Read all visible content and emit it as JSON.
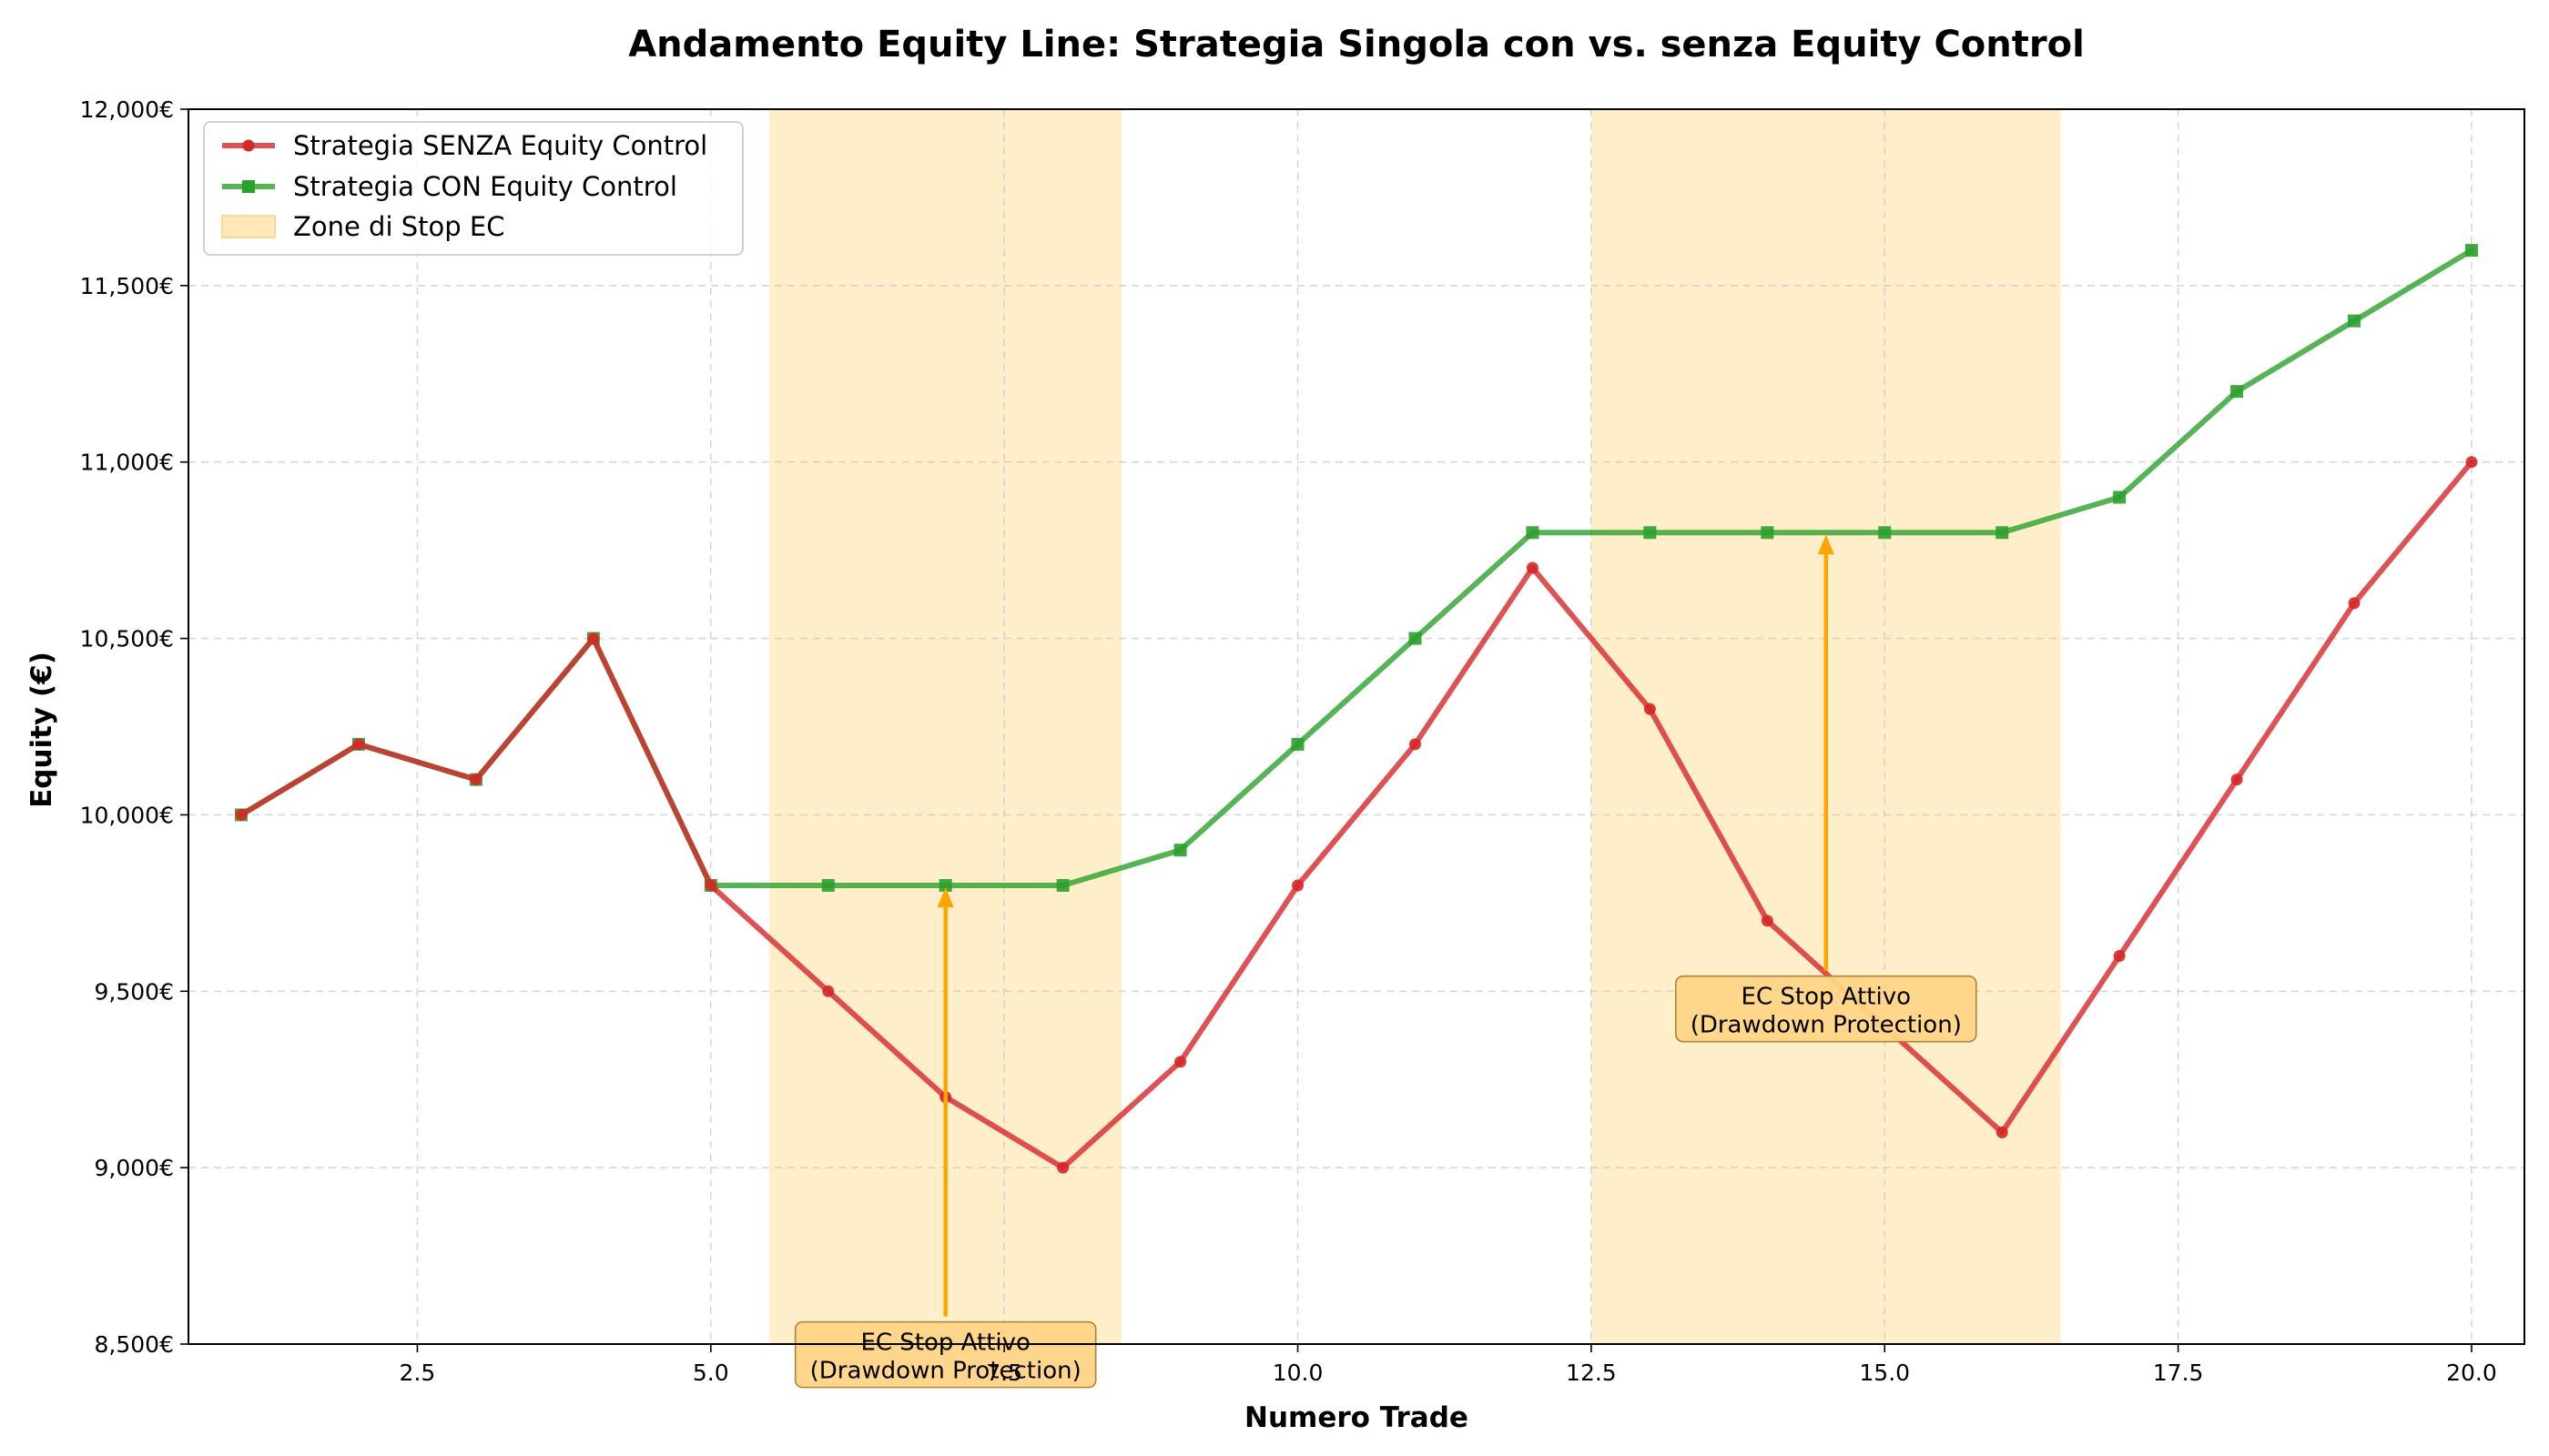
{
  "chart_data": {
    "type": "line",
    "title": "Andamento Equity Line: Strategia Singola con vs. senza Equity Control",
    "xlabel": "Numero Trade",
    "ylabel": "Equity (€)",
    "xlim": [
      0.55,
      20.45
    ],
    "ylim": [
      8500,
      12000
    ],
    "x_ticks": [
      2.5,
      5.0,
      7.5,
      10.0,
      12.5,
      15.0,
      17.5,
      20.0
    ],
    "x_tick_labels": [
      "2.5",
      "5.0",
      "7.5",
      "10.0",
      "12.5",
      "15.0",
      "17.5",
      "20.0"
    ],
    "y_ticks": [
      8500,
      9000,
      9500,
      10000,
      10500,
      11000,
      11500,
      12000
    ],
    "y_tick_labels": [
      "8,500€",
      "9,000€",
      "9,500€",
      "10,000€",
      "10,500€",
      "11,000€",
      "11,500€",
      "12,000€"
    ],
    "grid": true,
    "legend_position": "top-left",
    "x": [
      1,
      2,
      3,
      4,
      5,
      6,
      7,
      8,
      9,
      10,
      11,
      12,
      13,
      14,
      15,
      16,
      17,
      18,
      19,
      20
    ],
    "series": [
      {
        "name": "Strategia SENZA Equity Control",
        "color": "#d62728",
        "marker": "circle",
        "values": [
          10000,
          10200,
          10100,
          10500,
          9800,
          9500,
          9200,
          9000,
          9300,
          9800,
          10200,
          10700,
          10300,
          9700,
          9400,
          9100,
          9600,
          10100,
          10600,
          11000
        ]
      },
      {
        "name": "Strategia CON Equity Control",
        "color": "#2ca02c",
        "marker": "square",
        "values": [
          10000,
          10200,
          10100,
          10500,
          9800,
          9800,
          9800,
          9800,
          9900,
          10200,
          10500,
          10800,
          10800,
          10800,
          10800,
          10800,
          10900,
          11200,
          11400,
          11600
        ]
      }
    ],
    "shaded_regions": {
      "name": "Zone di Stop EC",
      "color": "#ffe8b8",
      "ranges": [
        [
          5.5,
          8.5
        ],
        [
          12.5,
          16.5
        ]
      ]
    },
    "annotations": [
      {
        "line1": "EC Stop Attivo",
        "line2": "(Drawdown Protection)",
        "text_at": [
          7.0,
          8470
        ],
        "arrow_to": [
          7.0,
          9800
        ]
      },
      {
        "line1": "EC Stop Attivo",
        "line2": "(Drawdown Protection)",
        "text_at": [
          14.5,
          9450
        ],
        "arrow_to": [
          14.5,
          10800
        ]
      }
    ]
  }
}
